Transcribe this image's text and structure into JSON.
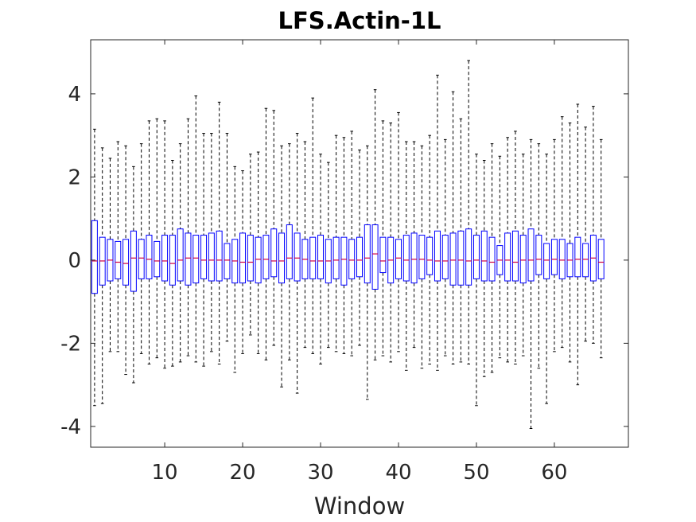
{
  "chart_data": {
    "type": "box",
    "title": "LFS.Actin-1L",
    "xlabel": "Window",
    "ylabel": "",
    "xlim": [
      0.5,
      69.5
    ],
    "ylim": [
      -4.5,
      5.3
    ],
    "xticks": [
      10,
      20,
      30,
      40,
      50,
      60
    ],
    "yticks": [
      -4,
      -2,
      0,
      2,
      4
    ],
    "colors": {
      "box": "#0000ff",
      "median": "#cc0044",
      "whisker": "#000000",
      "axes": "#262626"
    },
    "grid": false,
    "boxes": [
      {
        "x": 1,
        "min": -3.5,
        "q1": -0.8,
        "median": -0.02,
        "q3": 0.95,
        "max": 3.15
      },
      {
        "x": 2,
        "min": -3.45,
        "q1": -0.6,
        "median": -0.02,
        "q3": 0.55,
        "max": 2.7
      },
      {
        "x": 3,
        "min": -2.2,
        "q1": -0.5,
        "median": 0.0,
        "q3": 0.5,
        "max": 2.45
      },
      {
        "x": 4,
        "min": -2.2,
        "q1": -0.45,
        "median": -0.05,
        "q3": 0.45,
        "max": 2.85
      },
      {
        "x": 5,
        "min": -2.75,
        "q1": -0.6,
        "median": -0.08,
        "q3": 0.5,
        "max": 2.75
      },
      {
        "x": 6,
        "min": -2.95,
        "q1": -0.75,
        "median": 0.05,
        "q3": 0.7,
        "max": 2.25
      },
      {
        "x": 7,
        "min": -2.25,
        "q1": -0.45,
        "median": 0.05,
        "q3": 0.5,
        "max": 2.8
      },
      {
        "x": 8,
        "min": -2.5,
        "q1": -0.45,
        "median": 0.02,
        "q3": 0.6,
        "max": 3.35
      },
      {
        "x": 9,
        "min": -2.35,
        "q1": -0.4,
        "median": -0.02,
        "q3": 0.45,
        "max": 3.4
      },
      {
        "x": 10,
        "min": -2.6,
        "q1": -0.5,
        "median": -0.02,
        "q3": 0.6,
        "max": 3.35
      },
      {
        "x": 11,
        "min": -2.55,
        "q1": -0.6,
        "median": -0.08,
        "q3": 0.6,
        "max": 2.4
      },
      {
        "x": 12,
        "min": -2.45,
        "q1": -0.5,
        "median": 0.0,
        "q3": 0.75,
        "max": 2.8
      },
      {
        "x": 13,
        "min": -2.3,
        "q1": -0.6,
        "median": 0.05,
        "q3": 0.65,
        "max": 3.4
      },
      {
        "x": 14,
        "min": -2.45,
        "q1": -0.55,
        "median": 0.05,
        "q3": 0.6,
        "max": 3.95
      },
      {
        "x": 15,
        "min": -2.55,
        "q1": -0.45,
        "median": 0.0,
        "q3": 0.6,
        "max": 3.05
      },
      {
        "x": 16,
        "min": -2.2,
        "q1": -0.5,
        "median": 0.0,
        "q3": 0.65,
        "max": 3.05
      },
      {
        "x": 17,
        "min": -2.5,
        "q1": -0.5,
        "median": 0.0,
        "q3": 0.7,
        "max": 3.8
      },
      {
        "x": 18,
        "min": -1.95,
        "q1": -0.45,
        "median": 0.0,
        "q3": 0.4,
        "max": 3.05
      },
      {
        "x": 19,
        "min": -2.7,
        "q1": -0.55,
        "median": -0.02,
        "q3": 0.5,
        "max": 2.25
      },
      {
        "x": 20,
        "min": -2.25,
        "q1": -0.55,
        "median": -0.05,
        "q3": 0.65,
        "max": 2.15
      },
      {
        "x": 21,
        "min": -1.8,
        "q1": -0.5,
        "median": -0.05,
        "q3": 0.6,
        "max": 2.55
      },
      {
        "x": 22,
        "min": -2.25,
        "q1": -0.55,
        "median": 0.02,
        "q3": 0.55,
        "max": 2.6
      },
      {
        "x": 23,
        "min": -2.4,
        "q1": -0.45,
        "median": 0.02,
        "q3": 0.6,
        "max": 3.65
      },
      {
        "x": 24,
        "min": -2.05,
        "q1": -0.4,
        "median": -0.02,
        "q3": 0.75,
        "max": 3.6
      },
      {
        "x": 25,
        "min": -3.05,
        "q1": -0.55,
        "median": -0.02,
        "q3": 0.65,
        "max": 2.75
      },
      {
        "x": 26,
        "min": -2.4,
        "q1": -0.45,
        "median": 0.05,
        "q3": 0.85,
        "max": 2.8
      },
      {
        "x": 27,
        "min": -3.2,
        "q1": -0.5,
        "median": 0.05,
        "q3": 0.65,
        "max": 3.05
      },
      {
        "x": 28,
        "min": -2.1,
        "q1": -0.45,
        "median": 0.02,
        "q3": 0.5,
        "max": 2.85
      },
      {
        "x": 29,
        "min": -2.25,
        "q1": -0.45,
        "median": -0.02,
        "q3": 0.55,
        "max": 3.9
      },
      {
        "x": 30,
        "min": -2.5,
        "q1": -0.45,
        "median": -0.02,
        "q3": 0.6,
        "max": 2.55
      },
      {
        "x": 31,
        "min": -2.1,
        "q1": -0.55,
        "median": -0.02,
        "q3": 0.5,
        "max": 2.35
      },
      {
        "x": 32,
        "min": -2.2,
        "q1": -0.45,
        "median": 0.0,
        "q3": 0.55,
        "max": 3.0
      },
      {
        "x": 33,
        "min": -2.25,
        "q1": -0.6,
        "median": 0.02,
        "q3": 0.55,
        "max": 2.95
      },
      {
        "x": 34,
        "min": -2.3,
        "q1": -0.45,
        "median": 0.0,
        "q3": 0.5,
        "max": 3.1
      },
      {
        "x": 35,
        "min": -2.05,
        "q1": -0.4,
        "median": 0.0,
        "q3": 0.55,
        "max": 2.65
      },
      {
        "x": 36,
        "min": -3.35,
        "q1": -0.55,
        "median": 0.05,
        "q3": 0.85,
        "max": 2.75
      },
      {
        "x": 37,
        "min": -2.4,
        "q1": -0.7,
        "median": 0.15,
        "q3": 0.85,
        "max": 4.1
      },
      {
        "x": 38,
        "min": -2.3,
        "q1": -0.3,
        "median": -0.02,
        "q3": 0.55,
        "max": 3.35
      },
      {
        "x": 39,
        "min": -2.45,
        "q1": -0.55,
        "median": 0.0,
        "q3": 0.55,
        "max": 3.3
      },
      {
        "x": 40,
        "min": -2.2,
        "q1": -0.45,
        "median": 0.05,
        "q3": 0.5,
        "max": 3.55
      },
      {
        "x": 41,
        "min": -2.65,
        "q1": -0.5,
        "median": 0.0,
        "q3": 0.6,
        "max": 2.85
      },
      {
        "x": 42,
        "min": -2.1,
        "q1": -0.55,
        "median": 0.02,
        "q3": 0.65,
        "max": 2.85
      },
      {
        "x": 43,
        "min": -2.6,
        "q1": -0.45,
        "median": 0.02,
        "q3": 0.6,
        "max": 2.75
      },
      {
        "x": 44,
        "min": -2.5,
        "q1": -0.35,
        "median": 0.0,
        "q3": 0.55,
        "max": 3.0
      },
      {
        "x": 45,
        "min": -2.65,
        "q1": -0.5,
        "median": -0.02,
        "q3": 0.7,
        "max": 4.45
      },
      {
        "x": 46,
        "min": -2.3,
        "q1": -0.45,
        "median": -0.02,
        "q3": 0.6,
        "max": 2.9
      },
      {
        "x": 47,
        "min": -2.5,
        "q1": -0.6,
        "median": 0.0,
        "q3": 0.65,
        "max": 4.05
      },
      {
        "x": 48,
        "min": -2.45,
        "q1": -0.6,
        "median": 0.0,
        "q3": 0.7,
        "max": 3.4
      },
      {
        "x": 49,
        "min": -2.5,
        "q1": -0.6,
        "median": -0.02,
        "q3": 0.75,
        "max": 4.8
      },
      {
        "x": 50,
        "min": -3.5,
        "q1": -0.45,
        "median": 0.0,
        "q3": 0.6,
        "max": 2.55
      },
      {
        "x": 51,
        "min": -2.8,
        "q1": -0.5,
        "median": -0.02,
        "q3": 0.7,
        "max": 2.4
      },
      {
        "x": 52,
        "min": -2.7,
        "q1": -0.5,
        "median": -0.05,
        "q3": 0.55,
        "max": 2.8
      },
      {
        "x": 53,
        "min": -2.35,
        "q1": -0.35,
        "median": 0.0,
        "q3": 0.35,
        "max": 2.5
      },
      {
        "x": 54,
        "min": -2.45,
        "q1": -0.5,
        "median": 0.0,
        "q3": 0.65,
        "max": 2.95
      },
      {
        "x": 55,
        "min": -2.5,
        "q1": -0.5,
        "median": -0.05,
        "q3": 0.7,
        "max": 3.1
      },
      {
        "x": 56,
        "min": -2.3,
        "q1": -0.55,
        "median": 0.0,
        "q3": 0.6,
        "max": 2.55
      },
      {
        "x": 57,
        "min": -4.05,
        "q1": -0.5,
        "median": 0.0,
        "q3": 0.75,
        "max": 2.9
      },
      {
        "x": 58,
        "min": -2.6,
        "q1": -0.35,
        "median": 0.02,
        "q3": 0.6,
        "max": 2.8
      },
      {
        "x": 59,
        "min": -3.45,
        "q1": -0.45,
        "median": 0.0,
        "q3": 0.4,
        "max": 2.55
      },
      {
        "x": 60,
        "min": -2.2,
        "q1": -0.35,
        "median": 0.02,
        "q3": 0.5,
        "max": 2.9
      },
      {
        "x": 61,
        "min": -2.1,
        "q1": -0.45,
        "median": 0.0,
        "q3": 0.5,
        "max": 3.45
      },
      {
        "x": 62,
        "min": -2.45,
        "q1": -0.4,
        "median": 0.0,
        "q3": 0.4,
        "max": 3.3
      },
      {
        "x": 63,
        "min": -3.0,
        "q1": -0.4,
        "median": 0.02,
        "q3": 0.55,
        "max": 3.75
      },
      {
        "x": 64,
        "min": -1.95,
        "q1": -0.4,
        "median": 0.02,
        "q3": 0.4,
        "max": 3.2
      },
      {
        "x": 65,
        "min": -2.0,
        "q1": -0.5,
        "median": 0.05,
        "q3": 0.6,
        "max": 3.7
      },
      {
        "x": 66,
        "min": -2.35,
        "q1": -0.45,
        "median": -0.05,
        "q3": 0.5,
        "max": 2.9
      }
    ]
  }
}
